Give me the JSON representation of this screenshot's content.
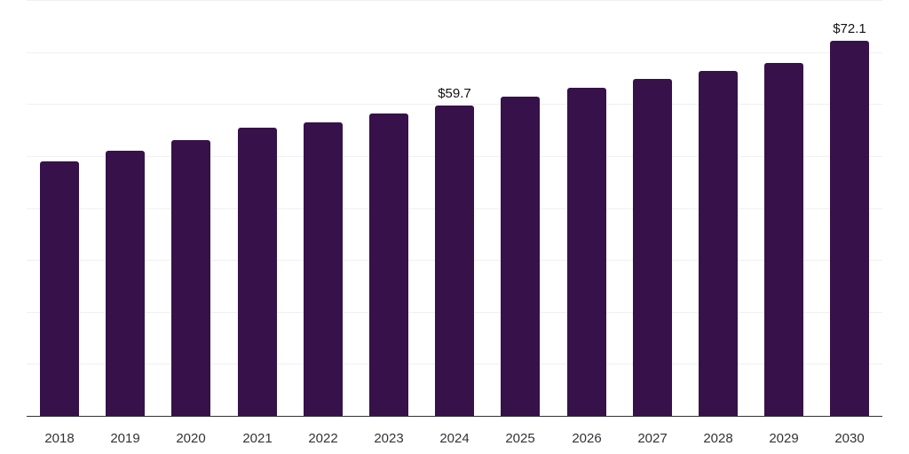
{
  "chart_data": {
    "type": "bar",
    "title": "",
    "xlabel": "",
    "ylabel": "",
    "categories": [
      "2018",
      "2019",
      "2020",
      "2021",
      "2022",
      "2023",
      "2024",
      "2025",
      "2026",
      "2027",
      "2028",
      "2029",
      "2030"
    ],
    "values": [
      48.9,
      51.0,
      53.0,
      55.4,
      56.5,
      58.2,
      59.7,
      61.4,
      63.1,
      64.8,
      66.4,
      67.9,
      72.1
    ],
    "data_labels": [
      {
        "category": "2024",
        "text": "$59.7"
      },
      {
        "category": "2030",
        "text": "$72.1"
      }
    ],
    "ylim": [
      0,
      80
    ],
    "grid": true,
    "grid_step": 10,
    "legend": "none",
    "bar_color": "#371149"
  }
}
